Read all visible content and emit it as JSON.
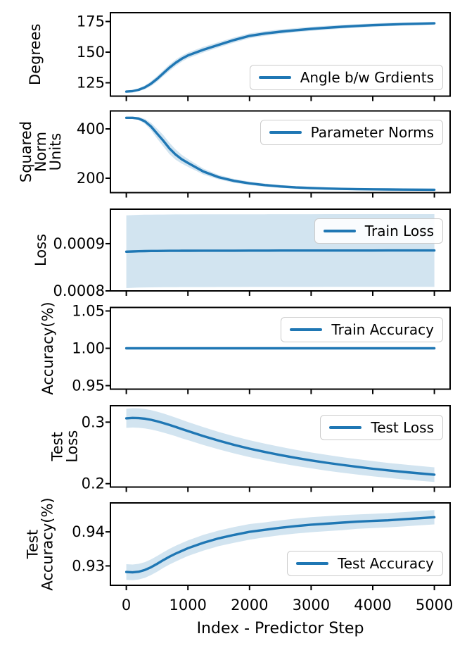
{
  "figure": {
    "xlabel": "Index - Predictor Step",
    "x_ticks": [
      0,
      1000,
      2000,
      3000,
      4000,
      5000
    ],
    "line_color": "#1f77b4",
    "band_color": "#1f77b4",
    "band_opacity": 0.2,
    "background": "#ffffff",
    "grid": false,
    "x_values": [
      0,
      100,
      200,
      300,
      400,
      500,
      600,
      700,
      800,
      900,
      1000,
      1250,
      1500,
      1750,
      2000,
      2250,
      2500,
      2750,
      3000,
      3250,
      3500,
      3750,
      4000,
      4250,
      4500,
      4750,
      5000
    ]
  },
  "chart_data": [
    {
      "id": "angle-between-gradients",
      "type": "line",
      "legend": "Angle b/w Grdients",
      "legend_position": "lower right",
      "ylabel_lines": [
        "Degrees"
      ],
      "yticks": [
        125,
        150,
        175
      ],
      "ytick_labels": [
        "125",
        "150",
        "175"
      ],
      "ylim": [
        114.1,
        182.2
      ],
      "values": [
        117.8,
        118.2,
        119.3,
        121.2,
        124.2,
        128.2,
        132.8,
        137.3,
        141.3,
        144.6,
        147.3,
        152.0,
        156.0,
        159.9,
        163.3,
        165.2,
        166.7,
        167.9,
        169.0,
        169.9,
        170.7,
        171.4,
        172.0,
        172.5,
        172.9,
        173.2,
        173.5
      ],
      "band_half": [
        0.8,
        0.9,
        1.2,
        1.6,
        2.0,
        2.3,
        2.5,
        2.6,
        2.6,
        2.5,
        2.4,
        2.3,
        2.2,
        2.1,
        2.0,
        1.9,
        1.8,
        1.7,
        1.7,
        1.6,
        1.5,
        1.5,
        1.4,
        1.4,
        1.3,
        1.3,
        1.2
      ]
    },
    {
      "id": "parameter-norms",
      "type": "line",
      "legend": "Parameter Norms",
      "legend_position": "upper right",
      "ylabel_lines": [
        "Squared",
        "Norm",
        "Units"
      ],
      "yticks": [
        200,
        400
      ],
      "ytick_labels": [
        "200",
        "400"
      ],
      "ylim": [
        141.4,
        472.9
      ],
      "values": [
        445,
        445,
        442,
        431,
        410,
        381,
        352,
        321,
        296,
        277,
        262,
        227,
        204,
        189,
        179,
        172,
        166.5,
        162.5,
        160,
        158,
        156.5,
        155.5,
        154.8,
        154.2,
        153.8,
        153.4,
        153
      ],
      "band_half": [
        4,
        4,
        6,
        10,
        15,
        20,
        23,
        23,
        21,
        18,
        16,
        12,
        9,
        8,
        7,
        6.5,
        6,
        5.5,
        5,
        5,
        4.5,
        4.5,
        4,
        4,
        4,
        4,
        4
      ]
    },
    {
      "id": "train-loss",
      "type": "line",
      "legend": "Train Loss",
      "legend_position": "upper right",
      "ylabel_lines": [
        "Loss"
      ],
      "yticks": [
        0.0008,
        0.0009
      ],
      "ytick_labels": [
        "0.0008",
        "0.0009"
      ],
      "ylim": [
        0.0008,
        0.000973
      ],
      "values": [
        0.000883,
        0.0008835,
        0.000884,
        0.0008843,
        0.0008845,
        0.0008846,
        0.0008847,
        0.0008848,
        0.0008849,
        0.000885,
        0.000885,
        0.0008851,
        0.0008852,
        0.0008852,
        0.0008853,
        0.0008853,
        0.0008854,
        0.0008854,
        0.0008854,
        0.0008855,
        0.0008855,
        0.0008855,
        0.0008855,
        0.0008856,
        0.0008856,
        0.0008856,
        0.0008856
      ],
      "band_half": 7.7e-05
    },
    {
      "id": "train-accuracy",
      "type": "line",
      "legend": "Train Accuracy",
      "legend_position": "upper right",
      "ylabel_lines": [
        "Accuracy(%)"
      ],
      "yticks": [
        0.95,
        1.0,
        1.05
      ],
      "ytick_labels": [
        "0.95",
        "1.00",
        "1.05"
      ],
      "ylim": [
        0.9453,
        1.0547
      ],
      "values": 1.0,
      "band_half": 0
    },
    {
      "id": "test-loss",
      "type": "line",
      "legend": "Test Loss",
      "legend_position": "upper right",
      "ylabel_lines": [
        "Test",
        "Loss"
      ],
      "yticks": [
        0.2,
        0.3
      ],
      "ytick_labels": [
        "0.2",
        "0.3"
      ],
      "ylim": [
        0.1945,
        0.3267
      ],
      "values": [
        0.3062,
        0.3069,
        0.3066,
        0.3056,
        0.3038,
        0.3014,
        0.2986,
        0.2955,
        0.2922,
        0.2888,
        0.2855,
        0.2774,
        0.2699,
        0.2631,
        0.2569,
        0.2515,
        0.2465,
        0.2419,
        0.2378,
        0.234,
        0.2305,
        0.2273,
        0.2243,
        0.2216,
        0.2191,
        0.2168,
        0.2147
      ],
      "band_half": [
        0.0155,
        0.0157,
        0.0158,
        0.0158,
        0.0157,
        0.0156,
        0.0155,
        0.0153,
        0.0151,
        0.015,
        0.0148,
        0.0145,
        0.0142,
        0.0139,
        0.0137,
        0.0135,
        0.0133,
        0.0131,
        0.0129,
        0.0128,
        0.0126,
        0.0125,
        0.0124,
        0.0122,
        0.0121,
        0.012,
        0.0119
      ]
    },
    {
      "id": "test-accuracy",
      "type": "line",
      "legend": "Test Accuracy",
      "legend_position": "lower right",
      "ylabel_lines": [
        "Test",
        "Accuracy(%)"
      ],
      "yticks": [
        0.93,
        0.94
      ],
      "ytick_labels": [
        "0.93",
        "0.94"
      ],
      "ylim": [
        0.9243,
        0.9485
      ],
      "values": [
        0.9282,
        0.9281,
        0.9283,
        0.9288,
        0.9296,
        0.9306,
        0.9317,
        0.9327,
        0.9336,
        0.9344,
        0.9352,
        0.9368,
        0.9381,
        0.9391,
        0.94,
        0.9406,
        0.9412,
        0.9417,
        0.9421,
        0.9424,
        0.9427,
        0.943,
        0.9432,
        0.9434,
        0.9437,
        0.944,
        0.9443
      ],
      "band_half": [
        0.0023,
        0.0023,
        0.0023,
        0.0023,
        0.0023,
        0.0023,
        0.0023,
        0.0023,
        0.0023,
        0.0023,
        0.0023,
        0.0023,
        0.0023,
        0.0023,
        0.0023,
        0.0022,
        0.0022,
        0.0022,
        0.0022,
        0.0022,
        0.0022,
        0.0021,
        0.0021,
        0.0021,
        0.0021,
        0.0021,
        0.0021
      ]
    }
  ]
}
